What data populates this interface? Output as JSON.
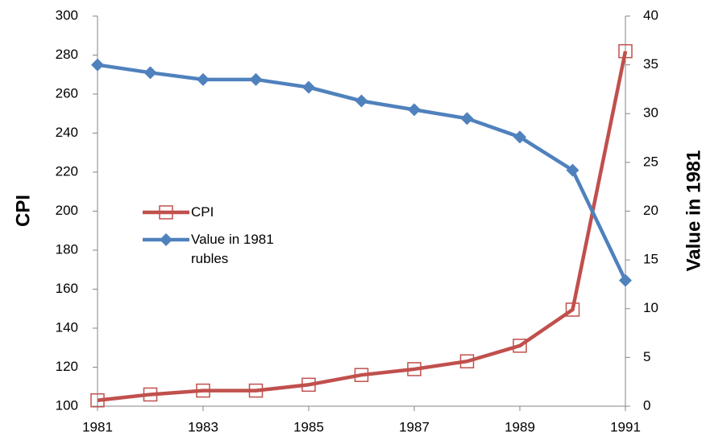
{
  "chart_data": {
    "type": "line",
    "x": [
      1981,
      1982,
      1983,
      1984,
      1985,
      1986,
      1987,
      1988,
      1989,
      1990,
      1991
    ],
    "xlim": [
      1981,
      1991
    ],
    "xticks": [
      1981,
      1983,
      1985,
      1987,
      1989,
      1991
    ],
    "ylabel": "CPI",
    "y2label": "Value in 1981",
    "ylim": [
      100,
      300
    ],
    "yticks": [
      100,
      120,
      140,
      160,
      180,
      200,
      220,
      240,
      260,
      280,
      300
    ],
    "y2lim": [
      0,
      40
    ],
    "y2ticks": [
      0,
      5,
      10,
      15,
      20,
      25,
      30,
      35,
      40
    ],
    "grid": false,
    "legend": "center-left",
    "series": [
      {
        "name": "CPI",
        "color": "#c0504d",
        "marker": "square",
        "values": [
          103,
          106,
          108,
          108,
          111,
          116,
          119,
          123,
          131,
          149.5,
          282
        ]
      },
      {
        "name": "Value in 1981 rubles",
        "color": "#4f81bd",
        "marker": "diamond",
        "axis": "y2",
        "values": [
          35,
          34.2,
          33.5,
          33.5,
          32.7,
          31.3,
          30.4,
          29.5,
          27.6,
          24.2,
          12.9
        ]
      }
    ]
  }
}
